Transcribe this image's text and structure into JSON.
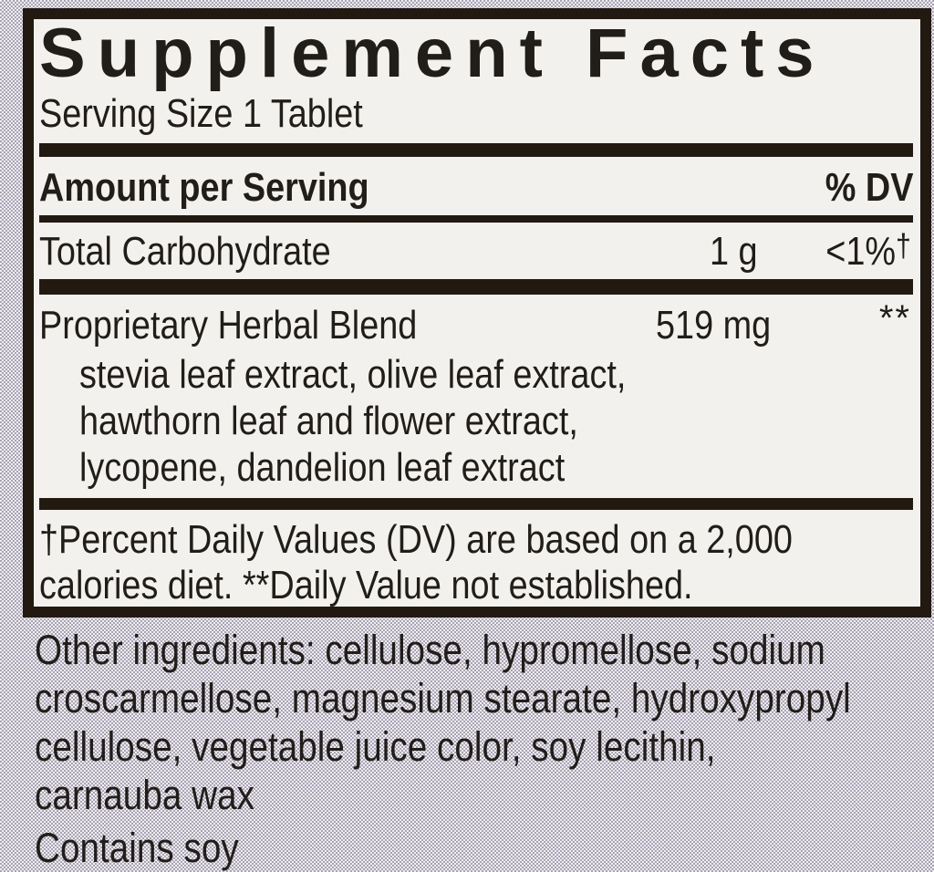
{
  "panel": {
    "title": "Supplement Facts",
    "serving_size": "Serving Size 1 Tablet",
    "header": {
      "amount_label": "Amount per Serving",
      "dv_label": "% DV"
    },
    "rows": [
      {
        "name": "Total Carbohydrate",
        "amount": "1 g",
        "dv": "<1%",
        "dv_sup": "†"
      },
      {
        "name": "Proprietary Herbal Blend",
        "amount": "519 mg",
        "dv_sup": "**",
        "details": [
          "stevia leaf extract, olive leaf extract,",
          "hawthorn leaf and flower extract,",
          "lycopene, dandelion leaf extract"
        ]
      }
    ],
    "footnote_line1": "†Percent Daily Values (DV) are based on a 2,000",
    "footnote_line2": "calories diet. **Daily Value not established."
  },
  "below": {
    "other_ingredients_lines": [
      "Other ingredients: cellulose, hypromellose, sodium",
      "croscarmellose, magnesium stearate, hydroxypropyl",
      "cellulose, vegetable juice color, soy lecithin,",
      "carnauba wax"
    ],
    "contains": "Contains soy"
  },
  "colors": {
    "ink": "#211d18",
    "panel_background": "#f2f1ee",
    "border_and_bars": "#221911",
    "outer_halftone_dark": "#a9a3b3",
    "outer_halftone_light": "#efeef2"
  }
}
